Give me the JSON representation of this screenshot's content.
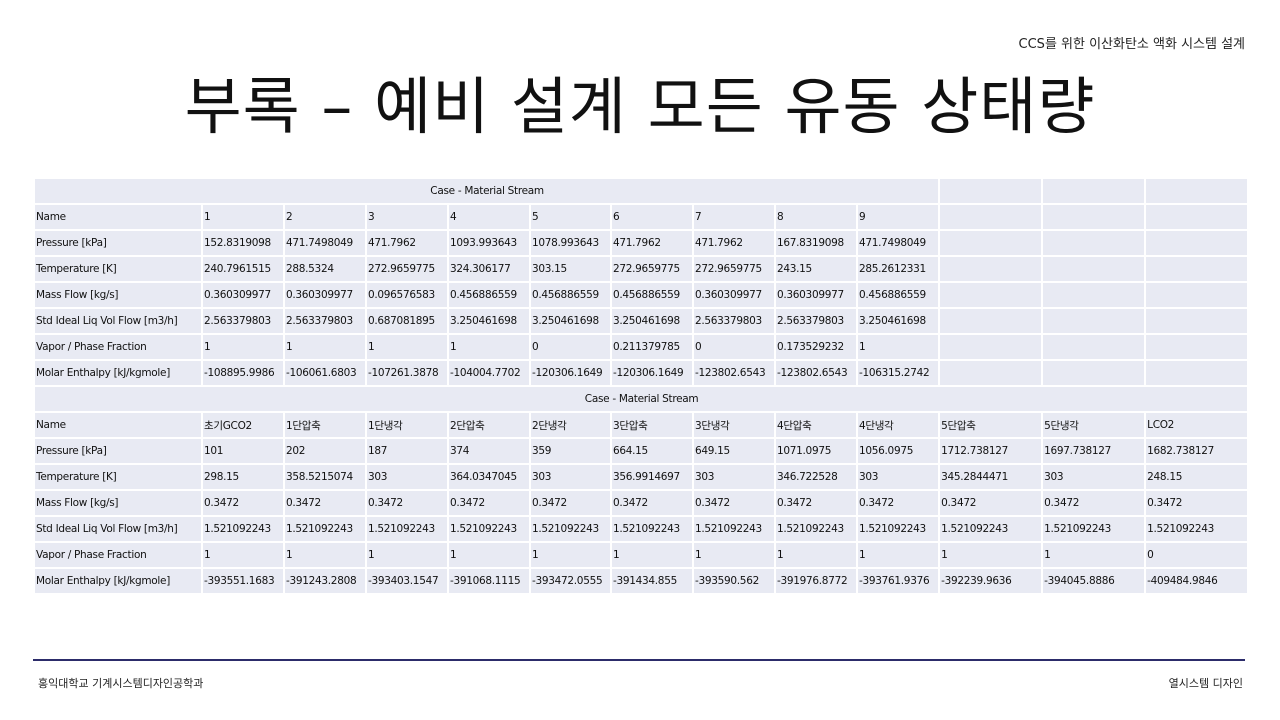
{
  "header": {
    "title": "CCS를 위한 이산화탄소 액화 시스템 설계"
  },
  "main_title": "부록 – 예비 설계 모든 유동 상태량",
  "table1": {
    "caption": "Case - Material Stream",
    "rows": [
      [
        "Name",
        "1",
        "2",
        "3",
        "4",
        "5",
        "6",
        "7",
        "8",
        "9"
      ],
      [
        "Pressure [kPa]",
        "152.8319098",
        "471.7498049",
        "471.7962",
        "1093.993643",
        "1078.993643",
        "471.7962",
        "471.7962",
        "167.8319098",
        "471.7498049"
      ],
      [
        "Temperature [K]",
        "240.7961515",
        "288.5324",
        "272.9659775",
        "324.306177",
        "303.15",
        "272.9659775",
        "272.9659775",
        "243.15",
        "285.2612331"
      ],
      [
        "Mass Flow [kg/s]",
        "0.360309977",
        "0.360309977",
        "0.096576583",
        "0.456886559",
        "0.456886559",
        "0.456886559",
        "0.360309977",
        "0.360309977",
        "0.456886559"
      ],
      [
        "Std Ideal Liq Vol Flow [m3/h]",
        "2.563379803",
        "2.563379803",
        "0.687081895",
        "3.250461698",
        "3.250461698",
        "3.250461698",
        "2.563379803",
        "2.563379803",
        "3.250461698"
      ],
      [
        "Vapor / Phase Fraction",
        "1",
        "1",
        "1",
        "1",
        "0",
        "0.211379785",
        "0",
        "0.173529232",
        "1"
      ],
      [
        "Molar Enthalpy [kJ/kgmole]",
        "-108895.9986",
        "-106061.6803",
        "-107261.3878",
        "-104004.7702",
        "-120306.1649",
        "-120306.1649",
        "-123802.6543",
        "-123802.6543",
        "-106315.2742"
      ]
    ]
  },
  "table2": {
    "caption": "Case - Material Stream",
    "rows": [
      [
        "Name",
        "초기GCO2",
        "1단압축",
        "1단냉각",
        "2단압축",
        "2단냉각",
        "3단압축",
        "3단냉각",
        "4단압축",
        "4단냉각",
        "5단압축",
        "5단냉각",
        "LCO2"
      ],
      [
        "Pressure [kPa]",
        "101",
        "202",
        "187",
        "374",
        "359",
        "664.15",
        "649.15",
        "1071.0975",
        "1056.0975",
        "1712.738127",
        "1697.738127",
        "1682.738127"
      ],
      [
        "Temperature [K]",
        "298.15",
        "358.5215074",
        "303",
        "364.0347045",
        "303",
        "356.9914697",
        "303",
        "346.722528",
        "303",
        "345.2844471",
        "303",
        "248.15"
      ],
      [
        "Mass Flow [kg/s]",
        "0.3472",
        "0.3472",
        "0.3472",
        "0.3472",
        "0.3472",
        "0.3472",
        "0.3472",
        "0.3472",
        "0.3472",
        "0.3472",
        "0.3472",
        "0.3472"
      ],
      [
        "Std Ideal Liq Vol Flow [m3/h]",
        "1.521092243",
        "1.521092243",
        "1.521092243",
        "1.521092243",
        "1.521092243",
        "1.521092243",
        "1.521092243",
        "1.521092243",
        "1.521092243",
        "1.521092243",
        "1.521092243",
        "1.521092243"
      ],
      [
        "Vapor / Phase Fraction",
        "1",
        "1",
        "1",
        "1",
        "1",
        "1",
        "1",
        "1",
        "1",
        "1",
        "1",
        "0"
      ],
      [
        "Molar Enthalpy [kJ/kgmole]",
        "-393551.1683",
        "-391243.2808",
        "-393403.1547",
        "-391068.1115",
        "-393472.0555",
        "-391434.855",
        "-393590.562",
        "-391976.8772",
        "-393761.9376",
        "-392239.9636",
        "-394045.8886",
        "-409484.9846"
      ]
    ]
  },
  "footer": {
    "left": "홍익대학교 기계시스템디자인공학과",
    "right": "열시스템 디자인"
  },
  "colors": {
    "cell_bg": "#e8eaf3",
    "footer_line": "#2c2c6a"
  }
}
